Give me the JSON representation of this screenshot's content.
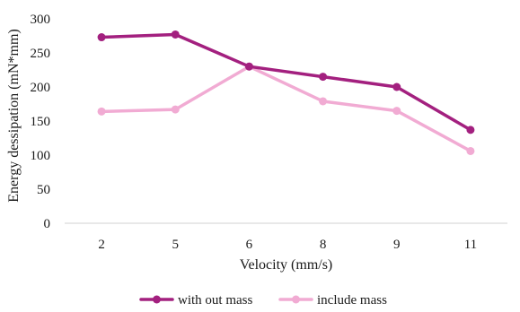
{
  "chart_data": {
    "type": "line",
    "categories": [
      "2",
      "5",
      "6",
      "8",
      "9",
      "11"
    ],
    "series": [
      {
        "name": "with out mass",
        "color": "#A3207F",
        "values": [
          273,
          277,
          230,
          215,
          200,
          137
        ]
      },
      {
        "name": "include mass",
        "color": "#F1ABD3",
        "values": [
          164,
          167,
          230,
          179,
          165,
          106
        ]
      }
    ],
    "title": "",
    "xlabel": "Velocity (mm/s)",
    "ylabel": "Energy dessipation (mN*mm)",
    "ylim": [
      0,
      300
    ],
    "yticks": [
      "0",
      "50",
      "100",
      "150",
      "200",
      "250",
      "300"
    ],
    "grid": false,
    "legend_position": "bottom"
  }
}
